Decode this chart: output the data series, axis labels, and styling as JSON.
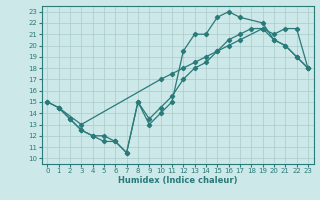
{
  "xlabel": "Humidex (Indice chaleur)",
  "ylabel": "",
  "bg_color": "#cce8e8",
  "grid_color": "#aacccc",
  "line_color": "#2a7a7a",
  "xlim": [
    -0.5,
    23.5
  ],
  "ylim": [
    9.5,
    23.5
  ],
  "xticks": [
    0,
    1,
    2,
    3,
    4,
    5,
    6,
    7,
    8,
    9,
    10,
    11,
    12,
    13,
    14,
    15,
    16,
    17,
    18,
    19,
    20,
    21,
    22,
    23
  ],
  "yticks": [
    10,
    11,
    12,
    13,
    14,
    15,
    16,
    17,
    18,
    19,
    20,
    21,
    22,
    23
  ],
  "line1_x": [
    0,
    1,
    3,
    10,
    11,
    12,
    13,
    14,
    15,
    16,
    17,
    19,
    20,
    21,
    22,
    23
  ],
  "line1_y": [
    15,
    14.5,
    13,
    17,
    17.5,
    18,
    18.5,
    19,
    19.5,
    20,
    20.5,
    21.5,
    21,
    21.5,
    21.5,
    18
  ],
  "line2_x": [
    0,
    1,
    2,
    3,
    4,
    5,
    6,
    7,
    8,
    9,
    10,
    11,
    12,
    13,
    14,
    15,
    16,
    17,
    19,
    20,
    21,
    22,
    23
  ],
  "line2_y": [
    15,
    14.5,
    13.5,
    12.5,
    12,
    12,
    11.5,
    10.5,
    15,
    13,
    14,
    15,
    19.5,
    21,
    21,
    22.5,
    23,
    22.5,
    22,
    20.5,
    20,
    19,
    18
  ],
  "line3_x": [
    1,
    2,
    3,
    4,
    5,
    6,
    7,
    8,
    9,
    10,
    11,
    12,
    13,
    14,
    15,
    16,
    17,
    18,
    19,
    20,
    21,
    22,
    23
  ],
  "line3_y": [
    14.5,
    13.5,
    12.5,
    12,
    11.5,
    11.5,
    10.5,
    15,
    13.5,
    14.5,
    15.5,
    17,
    18,
    18.5,
    19.5,
    20.5,
    21,
    21.5,
    21.5,
    20.5,
    20,
    19,
    18
  ]
}
